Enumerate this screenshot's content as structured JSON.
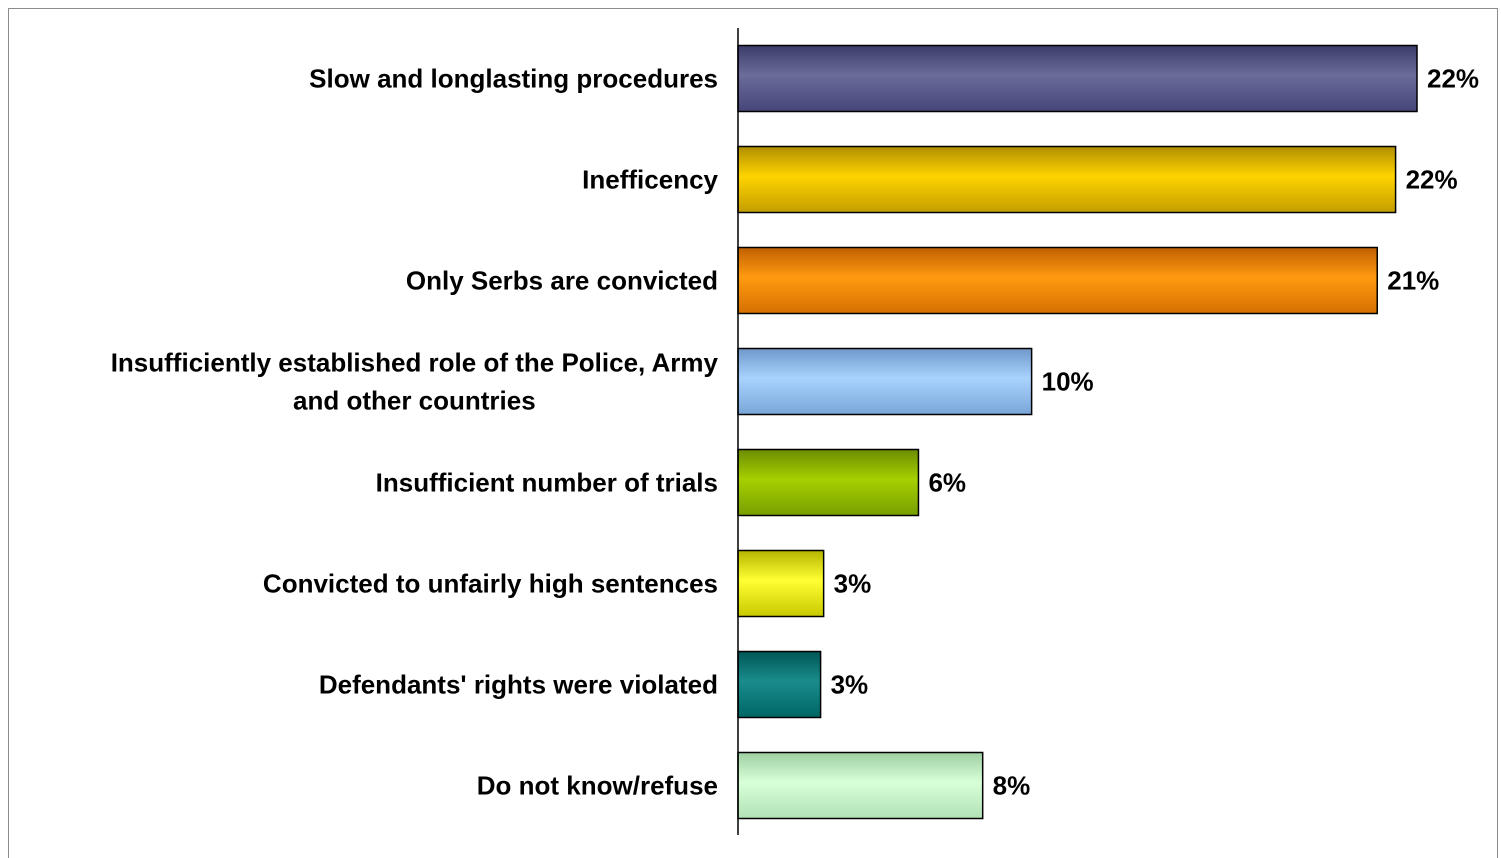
{
  "chart_data": {
    "type": "bar",
    "orientation": "horizontal",
    "categories": [
      [
        "Slow and longlasting procedures"
      ],
      [
        "Inefficency"
      ],
      [
        "Only Serbs are convicted"
      ],
      [
        "Insufficiently established role of the Police, Army",
        "and other countries"
      ],
      [
        "Insufficient number of trials"
      ],
      [
        "Convicted to unfairly high sentences"
      ],
      [
        "Defendants' rights were violated"
      ],
      [
        "Do not know/refuse"
      ]
    ],
    "values": [
      22.2,
      21.5,
      20.9,
      9.6,
      5.9,
      2.8,
      2.7,
      8.0
    ],
    "value_labels": [
      "22%",
      "22%",
      "21%",
      "10%",
      "6%",
      "3%",
      "3%",
      "8%"
    ],
    "colors": [
      [
        "#3c3c6a",
        "#6c6c9a",
        "#45457a"
      ],
      [
        "#b08e00",
        "#ffd400",
        "#c39e00"
      ],
      [
        "#c06000",
        "#ff9a10",
        "#d47000"
      ],
      [
        "#6f98c9",
        "#a8d3ff",
        "#7aa6d8"
      ],
      [
        "#6b8c00",
        "#a6d000",
        "#789e00"
      ],
      [
        "#b5b500",
        "#ffff33",
        "#c9c900"
      ],
      [
        "#005656",
        "#1a8c8c",
        "#006666"
      ],
      [
        "#9fcfa2",
        "#d8ffd8",
        "#b2e2b5"
      ]
    ],
    "xlim": [
      0,
      22.2
    ],
    "grid": false,
    "legend": "none"
  }
}
